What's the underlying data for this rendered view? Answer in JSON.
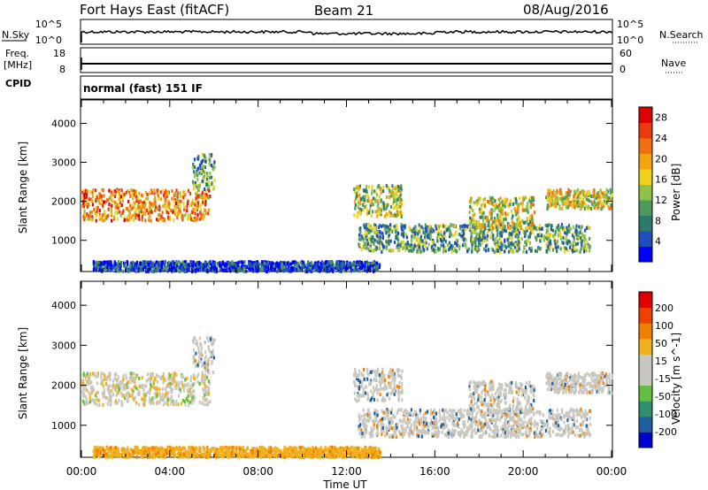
{
  "header": {
    "station": "Fort Hays East (fitACF)",
    "beam": "Beam 21",
    "date": "08/Aug/2016"
  },
  "status_panels": {
    "nsky_label": "N.Sky",
    "nsearch_label": "N.Search",
    "freq_label_1": "Freq.",
    "freq_label_2": "[MHz]",
    "cpid_label": "CPID",
    "nave_label": "Nave",
    "noise_ticks_left": [
      "10^5",
      "10^0"
    ],
    "noise_ticks_right": [
      "10^5",
      "10^0"
    ],
    "freq_ticks": [
      "18",
      "8"
    ],
    "nave_ticks": [
      "60",
      "0"
    ],
    "cpid_text": "normal (fast) 151 IF"
  },
  "colors": {
    "power_scale": [
      "#0000ff",
      "#1f4fbf",
      "#2b7a6e",
      "#4e9a5a",
      "#8fc24a",
      "#f2d21b",
      "#f5a20f",
      "#f07010",
      "#e83a0c",
      "#e00000"
    ],
    "velocity_scale": [
      "#e00000",
      "#f04000",
      "#f08000",
      "#f0b020",
      "#c8c8c0",
      "#c8c8c0",
      "#60c040",
      "#2f8f6f",
      "#205fa0",
      "#0000d0"
    ]
  },
  "chart_data": [
    {
      "type": "heatmap",
      "panel": "power",
      "ylabel": "Slant Range [km]",
      "y_ticks": [
        1000,
        2000,
        3000,
        4000
      ],
      "ylim": [
        200,
        4600
      ],
      "x_ticks": [
        "00:00",
        "04:00",
        "08:00",
        "12:00",
        "16:00",
        "20:00",
        "00:00"
      ],
      "xlim_hours": [
        0,
        24
      ],
      "colorbar_label": "Power [dB]",
      "colorbar_ticks": [
        4,
        8,
        12,
        16,
        20,
        24,
        28
      ],
      "colorbar_range": [
        0,
        30
      ],
      "regions": [
        {
          "t0": 0.0,
          "t1": 5.8,
          "r0": 1500,
          "r1": 2300,
          "level": 0.7
        },
        {
          "t0": 5.0,
          "t1": 6.0,
          "r0": 2300,
          "r1": 3200,
          "level": 0.35
        },
        {
          "t0": 12.3,
          "t1": 14.5,
          "r0": 1600,
          "r1": 2400,
          "level": 0.45
        },
        {
          "t0": 12.5,
          "t1": 23.0,
          "r0": 700,
          "r1": 1400,
          "level": 0.35
        },
        {
          "t0": 17.5,
          "t1": 20.5,
          "r0": 1300,
          "r1": 2100,
          "level": 0.5
        },
        {
          "t0": 21.0,
          "t1": 24.0,
          "r0": 1800,
          "r1": 2300,
          "level": 0.55
        },
        {
          "t0": 0.5,
          "t1": 13.5,
          "r0": 200,
          "r1": 450,
          "level": 0.15
        }
      ]
    },
    {
      "type": "heatmap",
      "panel": "velocity",
      "ylabel": "Slant Range [km]",
      "xlabel": "Time UT",
      "y_ticks": [
        1000,
        2000,
        3000,
        4000
      ],
      "ylim": [
        200,
        4600
      ],
      "x_ticks": [
        "00:00",
        "04:00",
        "08:00",
        "12:00",
        "16:00",
        "20:00",
        "00:00"
      ],
      "xlim_hours": [
        0,
        24
      ],
      "colorbar_label": "Velocity [m s^-1]",
      "colorbar_ticks": [
        200,
        100,
        50,
        15,
        -15,
        -50,
        -100,
        -200
      ],
      "regions": [
        {
          "t0": 0.0,
          "t1": 5.8,
          "r0": 1500,
          "r1": 2300,
          "kind": "gray-orange"
        },
        {
          "t0": 5.0,
          "t1": 6.0,
          "r0": 2300,
          "r1": 3200,
          "kind": "gray"
        },
        {
          "t0": 12.3,
          "t1": 14.5,
          "r0": 1600,
          "r1": 2400,
          "kind": "gray"
        },
        {
          "t0": 12.5,
          "t1": 23.0,
          "r0": 700,
          "r1": 1400,
          "kind": "gray"
        },
        {
          "t0": 17.5,
          "t1": 20.5,
          "r0": 1300,
          "r1": 2100,
          "kind": "gray"
        },
        {
          "t0": 21.0,
          "t1": 24.0,
          "r0": 1800,
          "r1": 2300,
          "kind": "gray"
        },
        {
          "t0": 0.5,
          "t1": 13.5,
          "r0": 200,
          "r1": 450,
          "kind": "orange"
        }
      ]
    }
  ]
}
